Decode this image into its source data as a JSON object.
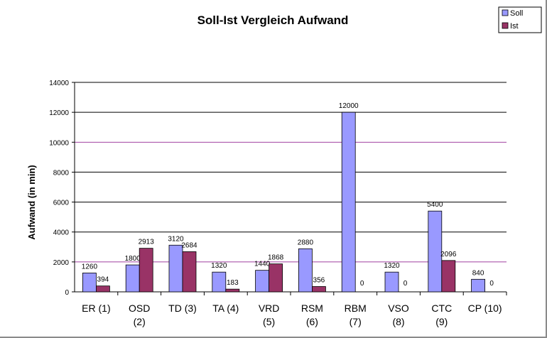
{
  "chart_data": {
    "type": "bar",
    "title": "Soll-Ist Vergleich Aufwand",
    "xlabel": "",
    "ylabel": "Aufwand (in min)",
    "ylim": [
      0,
      14000
    ],
    "yticks": [
      "0",
      "2000",
      "4000",
      "6000",
      "8000",
      "10000",
      "12000",
      "14000"
    ],
    "grid": "horizontal",
    "legend_position": "top-right",
    "categories": [
      [
        "ER (1)"
      ],
      [
        "OSD",
        "(2)"
      ],
      [
        "TD (3)"
      ],
      [
        "TA (4)"
      ],
      [
        "VRD",
        "(5)"
      ],
      [
        "RSM",
        "(6)"
      ],
      [
        "RBM",
        "(7)"
      ],
      [
        "VSO",
        "(8)"
      ],
      [
        "CTC",
        "(9)"
      ],
      [
        "CP (10)"
      ]
    ],
    "series": [
      {
        "name": "Soll",
        "color": "#9999ff",
        "values": [
          1260,
          1800,
          3120,
          1320,
          1440,
          2880,
          12000,
          1320,
          5400,
          840
        ],
        "labels": [
          "1260",
          "1800",
          "3120",
          "1320",
          "1440",
          "2880",
          "12000",
          "1320",
          "5400",
          "840"
        ]
      },
      {
        "name": "Ist",
        "color": "#993366",
        "values": [
          394,
          2913,
          2684,
          183,
          1868,
          356,
          0,
          0,
          2096,
          0
        ],
        "labels": [
          "394",
          "2913",
          "2684",
          "183",
          "1868",
          "356",
          "0",
          "0",
          "2096",
          "0"
        ]
      }
    ]
  }
}
